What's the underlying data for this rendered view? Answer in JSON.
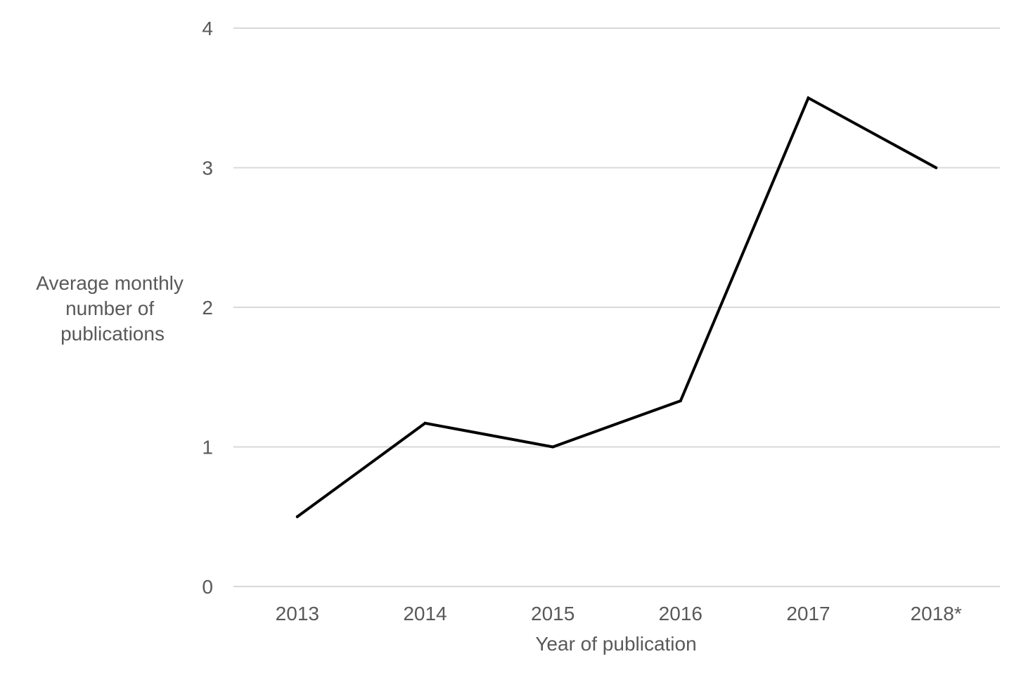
{
  "chart_data": {
    "type": "line",
    "xlabel": "Year of publication",
    "ylabel_lines": [
      "Average monthly",
      "number of",
      "publications"
    ],
    "categories": [
      "2013",
      "2014",
      "2015",
      "2016",
      "2017",
      "2018*"
    ],
    "series": [
      {
        "values": [
          0.5,
          1.17,
          1.0,
          1.33,
          3.5,
          3.0
        ]
      }
    ],
    "ylim": [
      0,
      4
    ],
    "yticks": [
      0,
      1,
      2,
      3,
      4
    ],
    "grid": true,
    "legend": "none",
    "colors": {
      "line": "#000000",
      "grid": "#d9d9d9",
      "text": "#595959"
    }
  }
}
